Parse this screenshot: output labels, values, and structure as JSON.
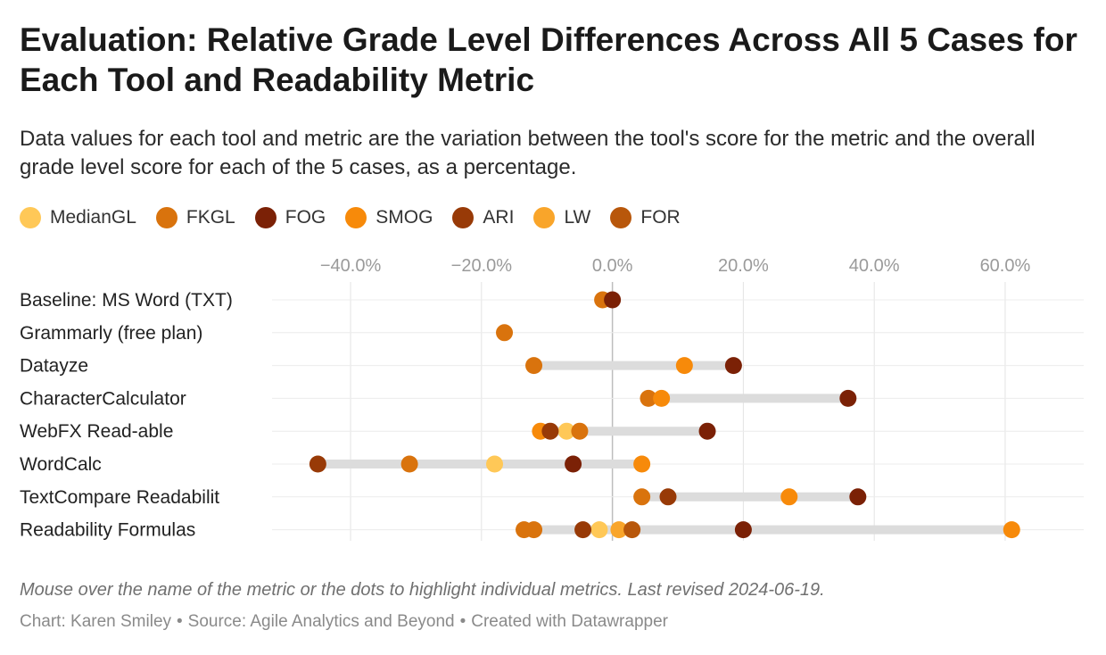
{
  "title": "Evaluation: Relative Grade Level Differences Across All 5 Cases for Each Tool and Readability Metric",
  "subtitle": "Data values for each tool and metric are the variation between the tool's score for the metric and the overall grade level score for each of the 5 cases, as a percentage.",
  "legend": [
    {
      "label": "MedianGL",
      "color": "#FFC857"
    },
    {
      "label": "FKGL",
      "color": "#D9730D"
    },
    {
      "label": "FOG",
      "color": "#7B2106"
    },
    {
      "label": "SMOG",
      "color": "#F78A0A"
    },
    {
      "label": "ARI",
      "color": "#983A07"
    },
    {
      "label": "LW",
      "color": "#F9A52A"
    },
    {
      "label": "FOR",
      "color": "#B8570B"
    }
  ],
  "footnote": "Mouse over the name of the metric or the dots to highlight individual metrics. Last revised 2024-06-19.",
  "credits": {
    "chart": "Chart: Karen Smiley",
    "source": "Source: Agile Analytics and Beyond",
    "created": "Created with Datawrapper",
    "separator": "•"
  },
  "chart_data": {
    "type": "scatter",
    "xlim": [
      -52,
      72
    ],
    "x_ticks": [
      -40,
      -20,
      0,
      20,
      40,
      60
    ],
    "x_tick_labels": [
      "−40.0%",
      "−20.0%",
      "0.0%",
      "20.0%",
      "40.0%",
      "60.0%"
    ],
    "grid": true,
    "legend_position": "top",
    "categories": [
      "Baseline: MS Word (TXT)",
      "Grammarly (free plan)",
      "Datayze",
      "CharacterCalculator",
      "WebFX Read-able",
      "WordCalc",
      "TextCompare Readabilit",
      "Readability Formulas"
    ],
    "series": [
      {
        "name": "MedianGL",
        "color": "#FFC857",
        "values": [
          null,
          null,
          null,
          null,
          -7,
          -18,
          null,
          -2
        ]
      },
      {
        "name": "FKGL",
        "color": "#D9730D",
        "values": [
          -1.5,
          -16.5,
          -12,
          5.5,
          -5,
          -31,
          4.5,
          -12
        ]
      },
      {
        "name": "FOG",
        "color": "#7B2106",
        "values": [
          0,
          null,
          18.5,
          36,
          14.5,
          -6,
          37.5,
          20
        ]
      },
      {
        "name": "SMOG",
        "color": "#F78A0A",
        "values": [
          null,
          null,
          11,
          7.5,
          -11,
          4.5,
          27,
          61
        ]
      },
      {
        "name": "ARI",
        "color": "#983A07",
        "values": [
          null,
          null,
          null,
          null,
          -9.5,
          -45,
          8.5,
          -4.5
        ]
      },
      {
        "name": "LW",
        "color": "#F9A52A",
        "values": [
          null,
          null,
          null,
          null,
          null,
          null,
          null,
          1
        ]
      },
      {
        "name": "FOR",
        "color": "#B8570B",
        "values": [
          null,
          null,
          null,
          null,
          null,
          null,
          null,
          3
        ]
      },
      {
        "name": "FKGL",
        "color": "#D9730D",
        "values": [
          null,
          null,
          null,
          null,
          null,
          null,
          null,
          -13.5
        ]
      }
    ]
  }
}
